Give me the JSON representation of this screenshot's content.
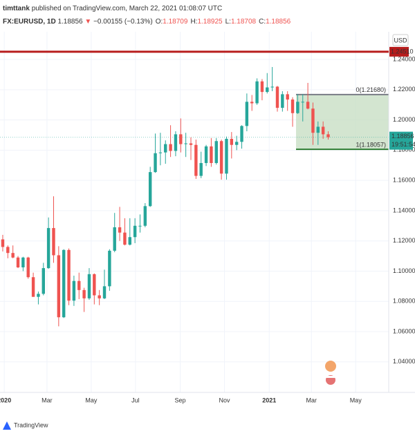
{
  "header": {
    "publisher": "timttank",
    "published": "published on TradingView.com, March 22, 2021 01:08:07 UTC",
    "symbol": "FX:EURUSD, 1D",
    "last": 1.18856,
    "change": "−0.00155 (−0.13%)",
    "ohlc": [
      {
        "label": "O:",
        "value": 1.18709
      },
      {
        "label": "H:",
        "value": 1.18925
      },
      {
        "label": "L:",
        "value": 1.18708
      },
      {
        "label": "C:",
        "value": 1.18856
      }
    ],
    "brand": "TradingView"
  },
  "chart_data": {
    "type": "candlestick",
    "currency": "USD",
    "up_color": "#26a69a",
    "down_color": "#ef5350",
    "open": [
      1.121,
      1.116,
      1.112,
      1.109,
      1.1025,
      1.109,
      1.096,
      1.083,
      1.085,
      1.102,
      1.1285,
      1.1105,
      1.0695,
      1.114,
      1.0805,
      1.0935,
      1.0875,
      1.082,
      1.098,
      1.084,
      1.082,
      1.09,
      1.1135,
      1.129,
      1.1255,
      1.1175,
      1.1225,
      1.13,
      1.13,
      1.143,
      1.1655,
      1.178,
      1.1785,
      1.184,
      1.1795,
      1.1905,
      1.184,
      1.1845,
      1.1835,
      1.163,
      1.1715,
      1.1825,
      1.1715,
      1.186,
      1.1645,
      1.1875,
      1.1835,
      1.1855,
      1.196,
      1.212,
      1.211,
      1.2255,
      1.2185,
      1.2215,
      1.222,
      1.208,
      1.217,
      1.2135,
      1.2045,
      1.212,
      1.212,
      1.2075,
      1.1915,
      1.1955,
      1.1905
    ],
    "high": [
      1.124,
      1.117,
      1.117,
      1.11,
      1.1095,
      1.1095,
      1.099,
      1.0865,
      1.1055,
      1.1355,
      1.1495,
      1.1165,
      1.1145,
      1.115,
      1.097,
      1.099,
      1.089,
      1.102,
      1.0985,
      1.0875,
      1.101,
      1.1145,
      1.1385,
      1.1425,
      1.135,
      1.135,
      1.135,
      1.1375,
      1.145,
      1.169,
      1.191,
      1.1915,
      1.1865,
      1.1965,
      1.1925,
      1.201,
      1.1915,
      1.1885,
      1.187,
      1.179,
      1.1835,
      1.188,
      1.188,
      1.187,
      1.189,
      1.192,
      1.1895,
      1.1965,
      1.2175,
      1.2165,
      1.2275,
      1.227,
      1.231,
      1.235,
      1.2225,
      1.219,
      1.219,
      1.215,
      1.217,
      1.217,
      1.2245,
      1.2115,
      1.199,
      1.199,
      1.1925
    ],
    "low": [
      1.113,
      1.1085,
      1.1085,
      1.102,
      1.1,
      1.095,
      1.083,
      1.078,
      1.084,
      1.1015,
      1.1055,
      1.0635,
      1.069,
      1.0775,
      1.077,
      1.0815,
      1.073,
      1.081,
      1.078,
      1.0775,
      1.0815,
      1.087,
      1.1125,
      1.12,
      1.117,
      1.117,
      1.1185,
      1.1255,
      1.129,
      1.1425,
      1.165,
      1.17,
      1.171,
      1.1755,
      1.176,
      1.1785,
      1.1755,
      1.1735,
      1.161,
      1.1615,
      1.1695,
      1.169,
      1.1705,
      1.1605,
      1.1605,
      1.1745,
      1.18,
      1.181,
      1.1925,
      1.206,
      1.21,
      1.213,
      1.2175,
      1.219,
      1.2055,
      1.2055,
      1.206,
      1.1955,
      1.204,
      1.199,
      1.207,
      1.1835,
      1.1835,
      1.1875,
      1.187
    ],
    "close": [
      1.116,
      1.112,
      1.109,
      1.1025,
      1.109,
      1.096,
      1.083,
      1.085,
      1.102,
      1.1285,
      1.1105,
      1.0695,
      1.114,
      1.0805,
      1.0935,
      1.0875,
      1.082,
      1.098,
      1.084,
      1.082,
      1.09,
      1.1135,
      1.129,
      1.1255,
      1.1175,
      1.1225,
      1.13,
      1.13,
      1.143,
      1.1655,
      1.178,
      1.1785,
      1.184,
      1.1795,
      1.1905,
      1.184,
      1.1845,
      1.1835,
      1.163,
      1.1715,
      1.1825,
      1.1715,
      1.186,
      1.1645,
      1.1875,
      1.1835,
      1.1855,
      1.196,
      1.212,
      1.211,
      1.2255,
      1.2185,
      1.2215,
      1.222,
      1.208,
      1.217,
      1.2135,
      1.2045,
      1.212,
      1.212,
      1.2075,
      1.1915,
      1.1955,
      1.1905,
      1.18856
    ],
    "xlim": [
      -0.54,
      75.9
    ],
    "xticks": [
      {
        "value": 0.3,
        "label": "2020"
      },
      {
        "value": 8.7,
        "label": "Mar"
      },
      {
        "value": 17.4,
        "label": "May"
      },
      {
        "value": 26.1,
        "label": "Jul"
      },
      {
        "value": 34.9,
        "label": "Sep"
      },
      {
        "value": 43.6,
        "label": "Nov"
      },
      {
        "value": 52.4,
        "label": "2021"
      },
      {
        "value": 60.7,
        "label": "Mar"
      },
      {
        "value": 69.4,
        "label": "May"
      }
    ],
    "ylim": [
      1.0198,
      1.2583
    ],
    "yticks": [
      {
        "value": 1.04,
        "label": "1.04000"
      },
      {
        "value": 1.06,
        "label": "1.06000"
      },
      {
        "value": 1.08,
        "label": "1.08000"
      },
      {
        "value": 1.1,
        "label": "1.10000"
      },
      {
        "value": 1.12,
        "label": "1.12000"
      },
      {
        "value": 1.14,
        "label": "1.14000"
      },
      {
        "value": 1.16,
        "label": "1.16000"
      },
      {
        "value": 1.18,
        "label": "1.18000"
      },
      {
        "value": 1.2,
        "label": "1.20000"
      },
      {
        "value": 1.22,
        "label": "1.22000"
      },
      {
        "value": 1.24,
        "label": "1.24000"
      }
    ],
    "grid": true,
    "resistance": {
      "value": 1.2451,
      "label": "1.24510",
      "color": "#b71c1c"
    },
    "fib_levels": [
      {
        "value": 1.2168,
        "label": "0(1.21680)",
        "color": "#787b86"
      },
      {
        "value": 1.18057,
        "label": "1(1.18057)",
        "color": "#2e7d32"
      }
    ],
    "fib_fill": "#c8dfc4",
    "current_price": {
      "value": 1.18856,
      "label": "1.18856",
      "countdown": "19:51:54",
      "color": "#26a69a"
    }
  }
}
